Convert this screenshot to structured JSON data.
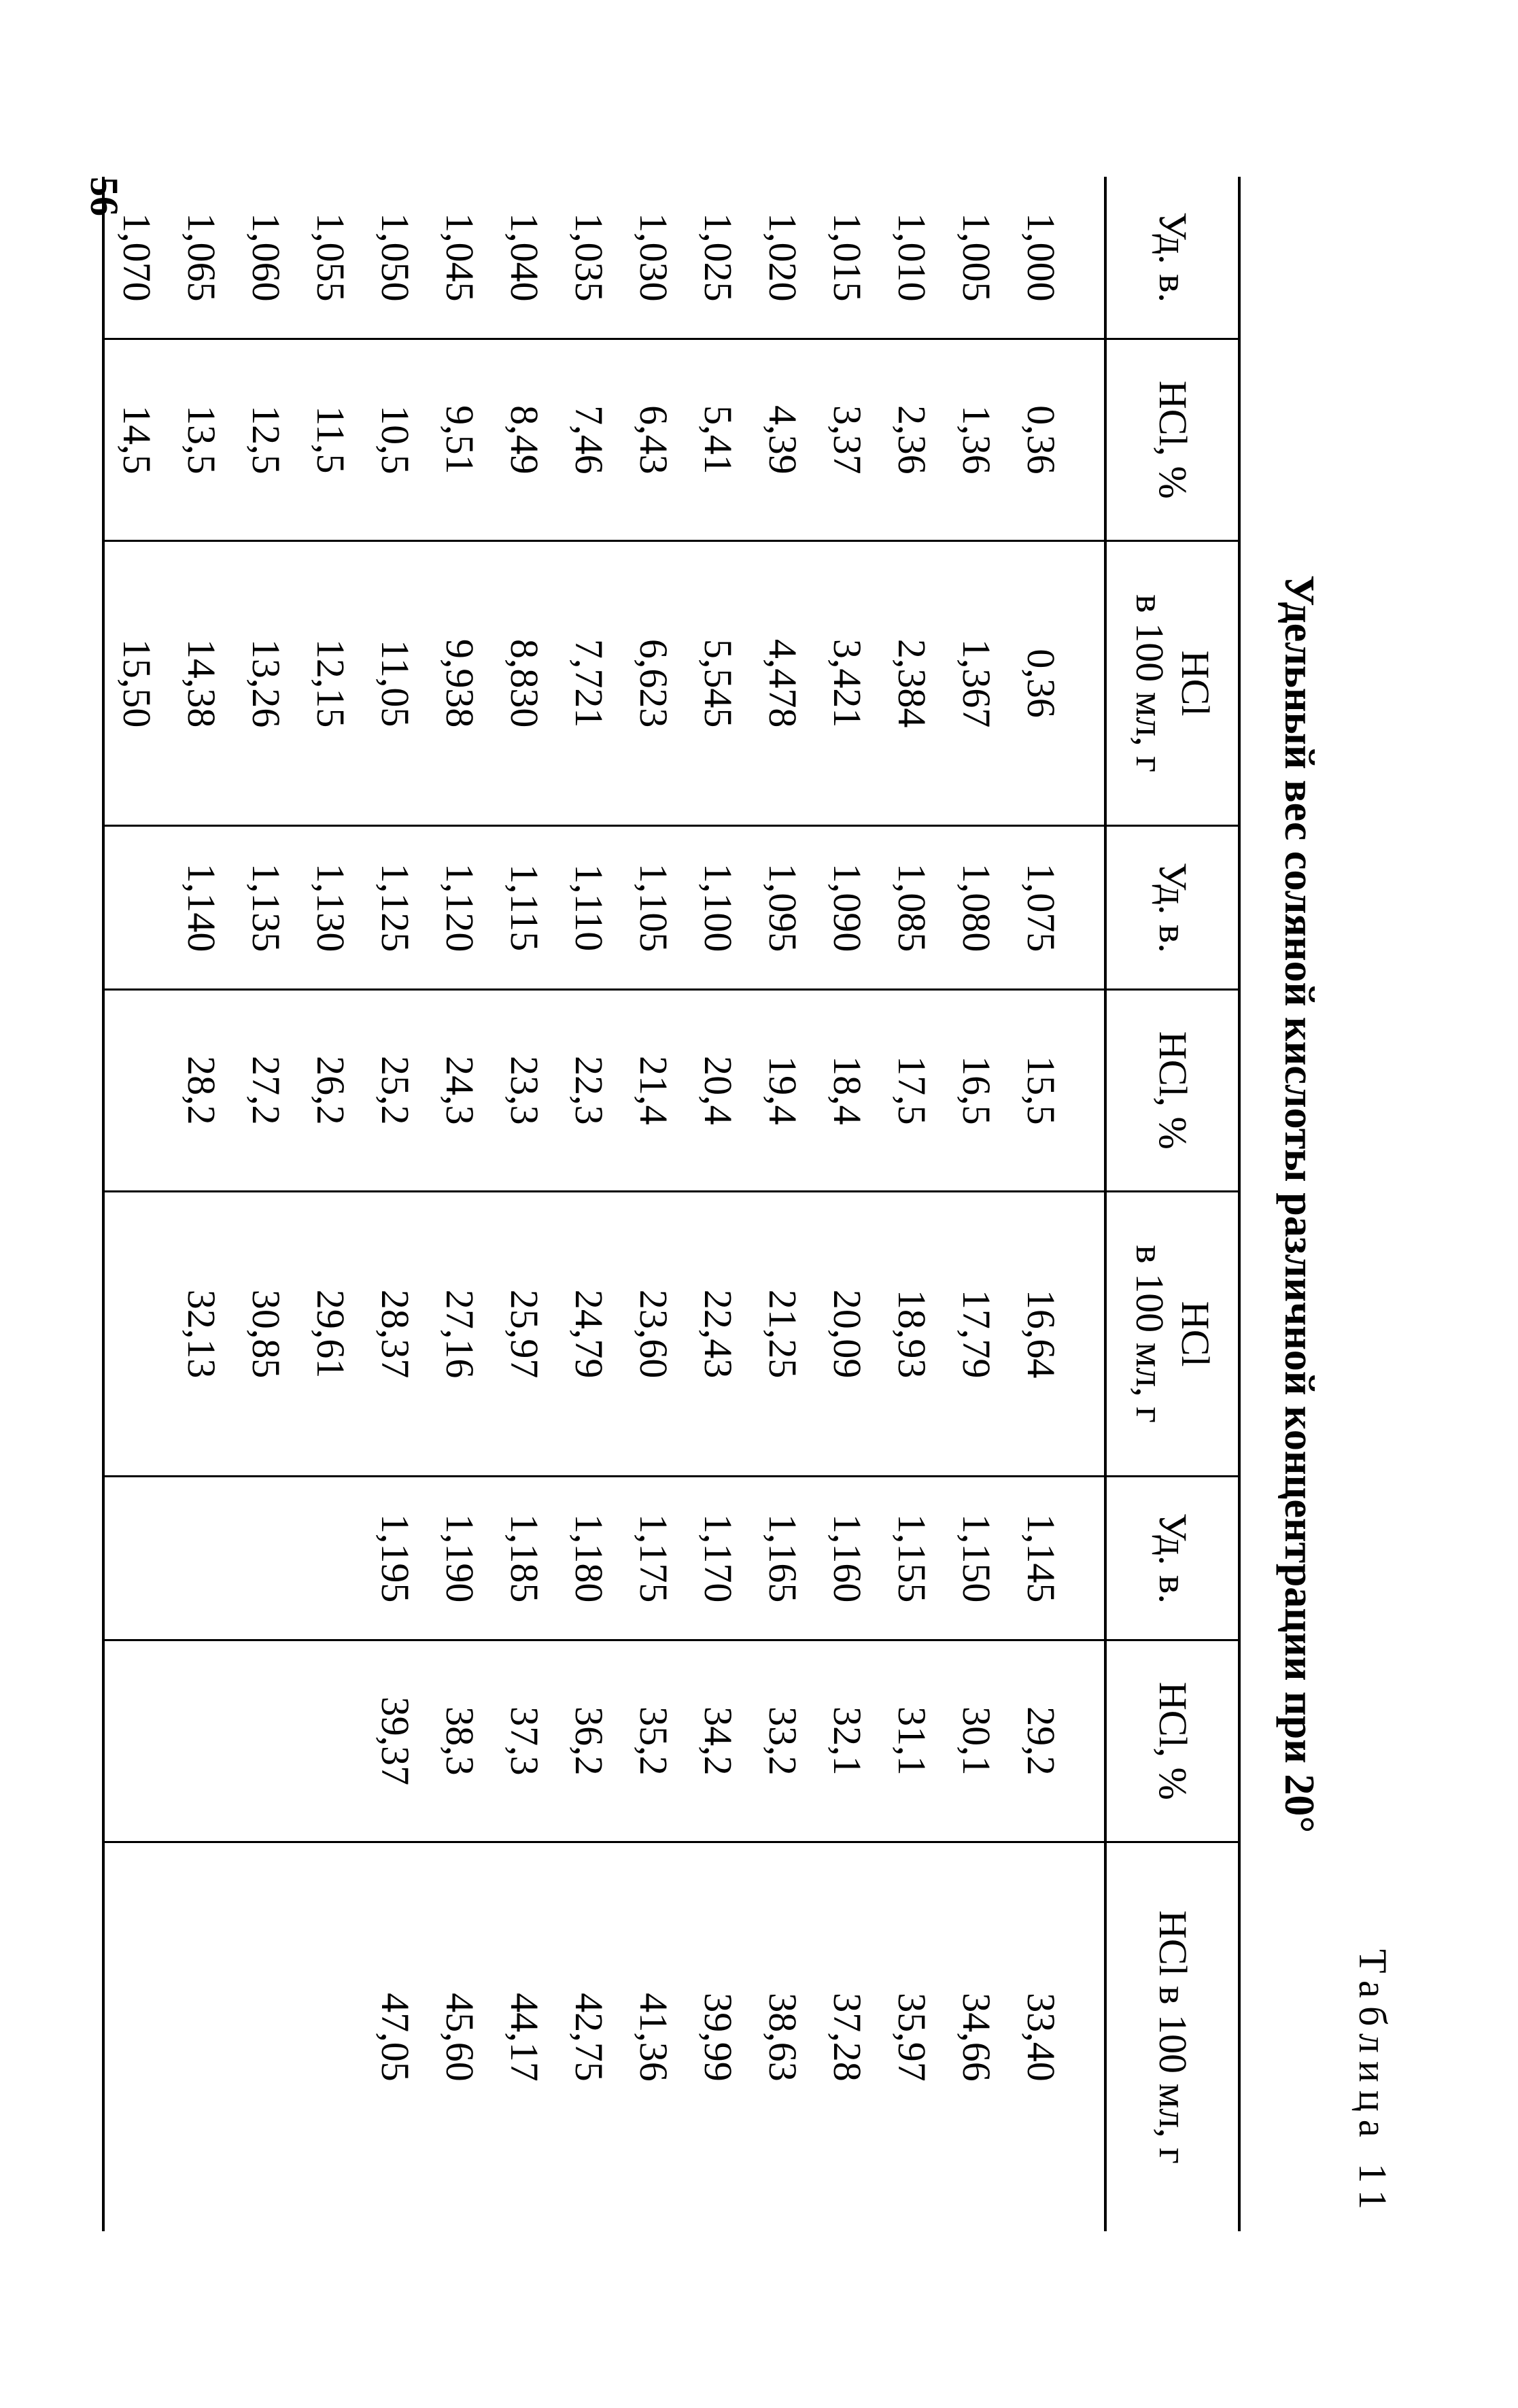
{
  "page_number": "56",
  "table_label": "Таблица 11",
  "title": "Удельный вес соляной кислоты различной концентрации при 20°",
  "table": {
    "type": "table",
    "font_family": "Times New Roman",
    "header_fontsize": 58,
    "cell_fontsize": 58,
    "border_color": "#000000",
    "background_color": "#ffffff",
    "text_color": "#000000",
    "columns": [
      {
        "label": "Уд. в."
      },
      {
        "label": "HCl, %"
      },
      {
        "label": "HCl\nв 100 мл, г"
      },
      {
        "label": "Уд. в."
      },
      {
        "label": "HCl, %"
      },
      {
        "label": "HCl\nв 100 мл, г"
      },
      {
        "label": "Уд. в."
      },
      {
        "label": "HCl, %"
      },
      {
        "label": "HCl в 100 мл, г"
      }
    ],
    "rows": [
      [
        "1,000",
        "0,36",
        "0,36",
        "1,075",
        "15,5",
        "16,64",
        "1,145",
        "29,2",
        "33,40"
      ],
      [
        "1,005",
        "1,36",
        "1,367",
        "1,080",
        "16,5",
        "17,79",
        "1,150",
        "30,1",
        "34,66"
      ],
      [
        "1,010",
        "2,36",
        "2,384",
        "1,085",
        "17,5",
        "18,93",
        "1,155",
        "31,1",
        "35,97"
      ],
      [
        "1,015",
        "3,37",
        "3,421",
        "1,090",
        "18,4",
        "20,09",
        "1,160",
        "32,1",
        "37,28"
      ],
      [
        "1,020",
        "4,39",
        "4,478",
        "1,095",
        "19,4",
        "21,25",
        "1,165",
        "33,2",
        "38,63"
      ],
      [
        "1,025",
        "5,41",
        "5,545",
        "1,100",
        "20,4",
        "22,43",
        "1,170",
        "34,2",
        "39,99"
      ],
      [
        "1,030",
        "6,43",
        "6,623",
        "1,105",
        "21,4",
        "23,60",
        "1,175",
        "35,2",
        "41,36"
      ],
      [
        "1,035",
        "7,46",
        "7,721",
        "1,110",
        "22,3",
        "24,79",
        "1,180",
        "36,2",
        "42,75"
      ],
      [
        "1,040",
        "8,49",
        "8,830",
        "1,115",
        "23,3",
        "25,97",
        "1,185",
        "37,3",
        "44,17"
      ],
      [
        "1,045",
        "9,51",
        "9,938",
        "1,120",
        "24,3",
        "27,16",
        "1,190",
        "38,3",
        "45,60"
      ],
      [
        "1,050",
        "10,5",
        "11,05",
        "1,125",
        "25,2",
        "28,37",
        "1,195",
        "39,37",
        "47,05"
      ],
      [
        "1,055",
        "11,5",
        "12,15",
        "1,130",
        "26,2",
        "29,61",
        "",
        "",
        ""
      ],
      [
        "1,060",
        "12,5",
        "13,26",
        "1,135",
        "27,2",
        "30,85",
        "",
        "",
        ""
      ],
      [
        "1,065",
        "13,5",
        "14,38",
        "1,140",
        "28,2",
        "32,13",
        "",
        "",
        ""
      ],
      [
        "1,070",
        "14,5",
        "15,50",
        "",
        "",
        "",
        "",
        "",
        ""
      ]
    ]
  }
}
